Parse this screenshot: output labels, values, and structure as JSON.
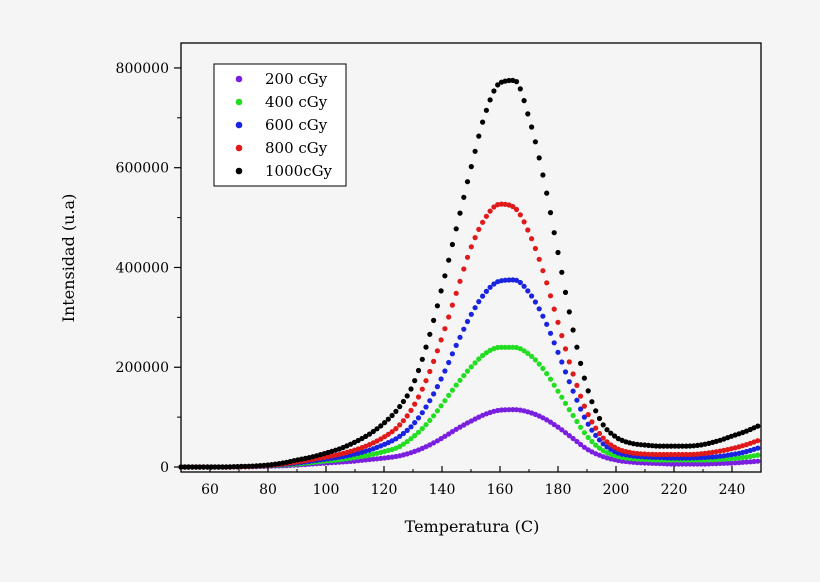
{
  "chart_data": {
    "type": "scatter",
    "title": "",
    "xlabel": "Temperatura (C)",
    "ylabel": "Intensidad (u.a)",
    "xlim": [
      50,
      250
    ],
    "ylim": [
      -10000,
      850000
    ],
    "xticks": [
      60,
      80,
      100,
      120,
      140,
      160,
      180,
      200,
      220,
      240
    ],
    "xtick_labels": [
      "60",
      "80",
      "100",
      "120",
      "140",
      "160",
      "180",
      "200",
      "220",
      "240"
    ],
    "yticks": [
      0,
      200000,
      400000,
      600000,
      800000
    ],
    "ytick_labels": [
      "0",
      "200000",
      "400000",
      "600000",
      "800000"
    ],
    "grid": false,
    "legend_position": "top-left",
    "x": [
      50,
      55,
      60,
      65,
      70,
      75,
      80,
      85,
      90,
      95,
      100,
      105,
      110,
      115,
      120,
      125,
      130,
      135,
      140,
      145,
      150,
      155,
      160,
      165,
      170,
      175,
      180,
      185,
      190,
      195,
      200,
      205,
      210,
      215,
      220,
      225,
      230,
      235,
      240,
      245,
      250
    ],
    "series": [
      {
        "name": "200  cGy",
        "color": "#7a1fe0",
        "values": [
          0,
          0,
          0,
          0,
          500,
          1000,
          1500,
          2500,
          4000,
          6000,
          8000,
          10000,
          12000,
          15000,
          18000,
          22000,
          30000,
          42000,
          58000,
          76000,
          92000,
          106000,
          114000,
          115000,
          110000,
          98000,
          80000,
          58000,
          36000,
          22000,
          14000,
          10000,
          8000,
          7000,
          6000,
          6000,
          6000,
          7000,
          8000,
          10000,
          12000
        ]
      },
      {
        "name": "400  cGy",
        "color": "#22dd22",
        "values": [
          0,
          0,
          0,
          0,
          500,
          1000,
          2000,
          4000,
          6000,
          9000,
          12000,
          15000,
          19000,
          24000,
          31000,
          40000,
          60000,
          88000,
          125000,
          165000,
          200000,
          228000,
          240000,
          240000,
          226000,
          196000,
          152000,
          105000,
          62000,
          35000,
          22000,
          17000,
          15000,
          14000,
          14000,
          14000,
          14000,
          15000,
          17000,
          20000,
          25000
        ]
      },
      {
        "name": "600  cGy",
        "color": "#1a23e0",
        "values": [
          0,
          0,
          0,
          0,
          500,
          1000,
          2500,
          5000,
          8000,
          12000,
          16000,
          20000,
          26000,
          34000,
          45000,
          60000,
          85000,
          125000,
          180000,
          245000,
          305000,
          350000,
          373000,
          375000,
          350000,
          300000,
          230000,
          155000,
          90000,
          50000,
          30000,
          23000,
          20000,
          19000,
          18000,
          18000,
          19000,
          21000,
          25000,
          31000,
          40000
        ]
      },
      {
        "name": "800  cGy",
        "color": "#e01a1a",
        "values": [
          0,
          0,
          0,
          0,
          500,
          1500,
          3000,
          6000,
          10000,
          15000,
          20000,
          26000,
          34000,
          45000,
          60000,
          82000,
          120000,
          180000,
          260000,
          350000,
          440000,
          500000,
          527000,
          520000,
          470000,
          390000,
          290000,
          190000,
          110000,
          62000,
          38000,
          29000,
          26000,
          25000,
          25000,
          25000,
          27000,
          31000,
          37000,
          45000,
          55000
        ]
      },
      {
        "name": "1000cGy",
        "color": "#000000",
        "values": [
          0,
          0,
          0,
          0,
          1000,
          2000,
          4000,
          8000,
          14000,
          20000,
          28000,
          37000,
          50000,
          66000,
          88000,
          118000,
          165000,
          250000,
          360000,
          480000,
          600000,
          710000,
          770000,
          775000,
          700000,
          580000,
          430000,
          280000,
          160000,
          90000,
          60000,
          48000,
          44000,
          42000,
          42000,
          42000,
          45000,
          52000,
          62000,
          72000,
          85000
        ]
      }
    ]
  }
}
